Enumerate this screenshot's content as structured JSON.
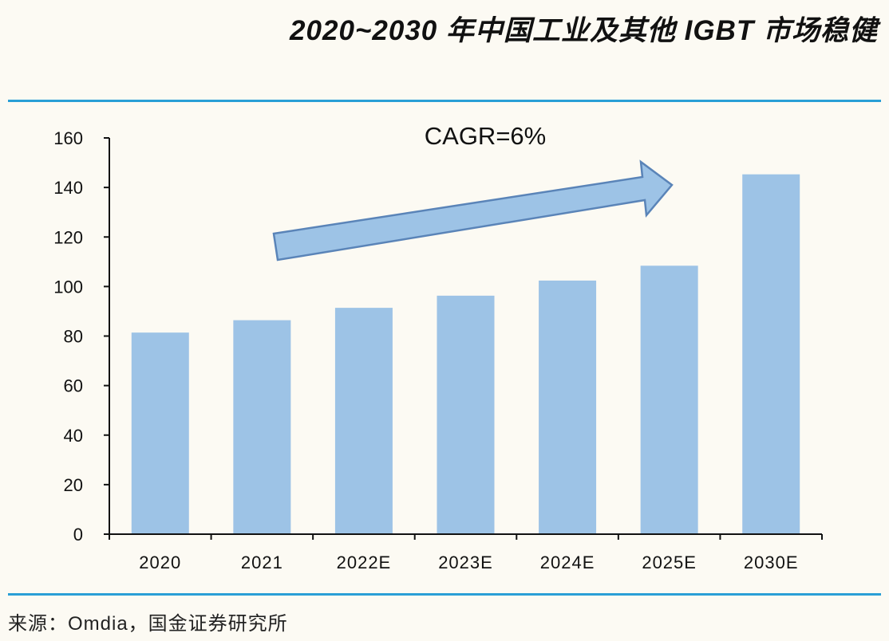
{
  "title": "2020~2030 年中国工业及其他 IGBT 市场稳健",
  "source": "来源：Omdia，国金证券研究所",
  "colors": {
    "bar": "#9dc3e6",
    "rule": "#2a9fd6",
    "arrow_fill": "#9dc3e6",
    "arrow_stroke": "#5a84b8"
  },
  "chart_data": {
    "type": "bar",
    "title": "",
    "xlabel": "",
    "ylabel": "",
    "categories": [
      "2020",
      "2021",
      "2022E",
      "2023E",
      "2024E",
      "2025E",
      "2030E"
    ],
    "values": [
      81.4,
      86.4,
      91.4,
      96.3,
      102.4,
      108.4,
      145.3
    ],
    "ylim": [
      0,
      160
    ],
    "yticks": [
      0,
      20,
      40,
      60,
      80,
      100,
      120,
      140,
      160
    ],
    "grid": false,
    "annotation": "CAGR=6%"
  }
}
